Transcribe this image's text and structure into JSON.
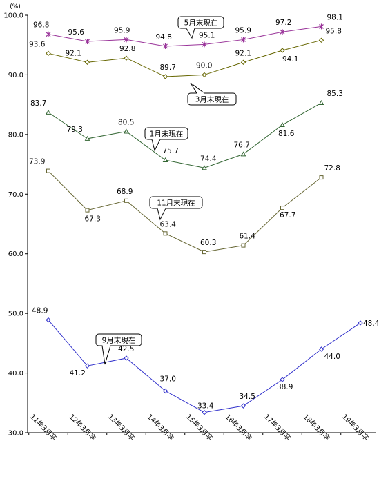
{
  "chart_data": {
    "type": "line",
    "ylabel": "(%)",
    "ylim": [
      30.0,
      100.0
    ],
    "yticks": [
      "30.0",
      "40.0",
      "50.0",
      "60.0",
      "70.0",
      "80.0",
      "90.0",
      "100.0"
    ],
    "categories": [
      "11年3月卒",
      "12年3月卒",
      "13年3月卒",
      "14年3月卒",
      "15年3月卒",
      "16年3月卒",
      "17年3月卒",
      "18年3月卒",
      "19年3月卒"
    ],
    "grid": false,
    "series": [
      {
        "callout": "5月末現在",
        "color": "#993399",
        "marker": "star",
        "values": [
          96.8,
          95.6,
          95.9,
          94.8,
          95.1,
          95.9,
          97.2,
          98.1,
          null
        ]
      },
      {
        "callout": "3月末現在",
        "color": "#666600",
        "marker": "diamond",
        "values": [
          93.6,
          92.1,
          92.8,
          89.7,
          90.0,
          92.1,
          94.1,
          95.8,
          null
        ]
      },
      {
        "callout": "1月末現在",
        "color": "#336633",
        "marker": "triangle",
        "values": [
          83.7,
          79.3,
          80.5,
          75.7,
          74.4,
          76.7,
          81.6,
          85.3,
          null
        ]
      },
      {
        "callout": "11月末現在",
        "color": "#666633",
        "marker": "square",
        "values": [
          73.9,
          67.3,
          68.9,
          63.4,
          60.3,
          61.4,
          67.7,
          72.8,
          null
        ]
      },
      {
        "callout": "9月末現在",
        "color": "#3333cc",
        "marker": "diamond",
        "values": [
          48.9,
          41.2,
          42.5,
          37.0,
          33.4,
          34.5,
          38.9,
          44.0,
          48.4
        ]
      }
    ]
  }
}
